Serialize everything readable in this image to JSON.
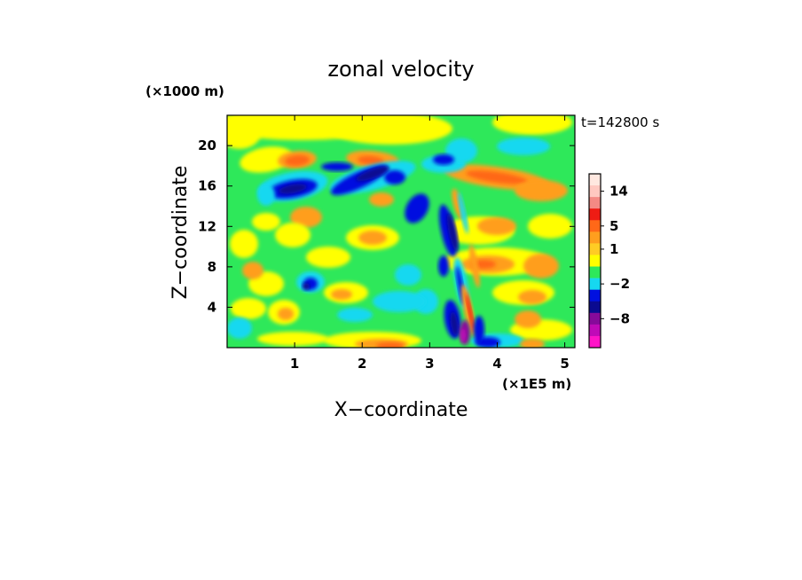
{
  "chart_data": {
    "type": "heatmap",
    "title": "zonal velocity",
    "xlabel": "X−coordinate",
    "ylabel": "Z−coordinate",
    "x_unit": "(×1E5 m)",
    "y_unit": "(×1000 m)",
    "time_label": "t=142800 s",
    "xlim": [
      0,
      5.15
    ],
    "ylim": [
      0,
      23
    ],
    "x_ticks": [
      1,
      2,
      3,
      4,
      5
    ],
    "y_ticks": [
      4,
      8,
      12,
      16,
      20
    ],
    "colorbar": {
      "labels": [
        "14",
        "5",
        "1",
        "−2",
        "−8"
      ],
      "bands_top_to_bottom": [
        {
          "color": "#ffe8e0"
        },
        {
          "color": "#ffc8c0",
          "label": "14"
        },
        {
          "color": "#f48a84"
        },
        {
          "color": "#ee1c14"
        },
        {
          "color": "#ff6818",
          "label": "5"
        },
        {
          "color": "#ff9e1e"
        },
        {
          "color": "#ffcc24",
          "label": "1"
        },
        {
          "color": "#ffff00"
        },
        {
          "color": "#2ee85a"
        },
        {
          "color": "#16d8f0",
          "label": "−2"
        },
        {
          "color": "#0010e0"
        },
        {
          "color": "#0a0a90"
        },
        {
          "color": "#860a9a",
          "label": "−8"
        },
        {
          "color": "#c00ab8"
        },
        {
          "color": "#ff14c8"
        }
      ]
    }
  }
}
